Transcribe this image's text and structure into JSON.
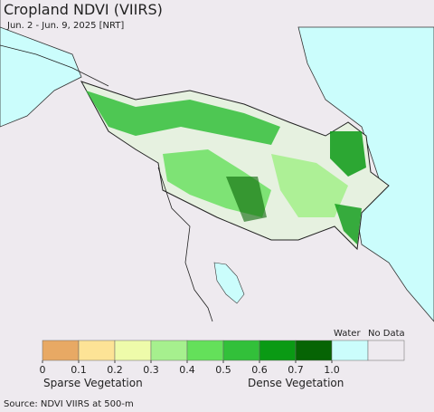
{
  "header": {
    "title": "Cropland NDVI (VIIRS)",
    "subtitle": "Jun. 2 - Jun. 9, 2025 [NRT]"
  },
  "legend": {
    "colors": [
      "#e8a964",
      "#fde396",
      "#eefbaa",
      "#a6f08e",
      "#64e05a",
      "#32c03a",
      "#0a9a14",
      "#066404"
    ],
    "ticks": [
      0,
      0.1,
      0.2,
      0.3,
      0.4,
      0.5,
      0.6,
      0.7,
      {
        "value": 1,
        "label": "1.0"
      }
    ],
    "water_label": "Water",
    "water_color": "#cbfdfc",
    "nodata_label": "No Data",
    "nodata_color": "#eeeaef",
    "sparse_label": "Sparse Vegetation",
    "dense_label": "Dense Vegetation"
  },
  "source": "Source: NDVI VIIRS at 500-m"
}
